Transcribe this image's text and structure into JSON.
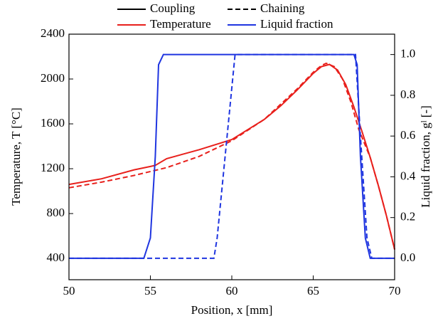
{
  "chart_data": {
    "type": "line",
    "xlabel": "Position, x [mm]",
    "ylabel": "Temperature, T [°C]",
    "y2label": "Liquid fraction, gˡ [-]",
    "xlim": [
      50,
      70
    ],
    "xticks": [
      50,
      55,
      60,
      65,
      70
    ],
    "ylim": [
      210,
      2400
    ],
    "yticks": [
      400,
      800,
      1200,
      1600,
      2000,
      2400
    ],
    "y2lim": [
      -0.105,
      1.1
    ],
    "y2ticks": [
      {
        "value": 0,
        "label": "0.0"
      },
      0.2,
      0.4,
      0.6,
      0.8,
      {
        "value": 1,
        "label": "1.0"
      }
    ],
    "legend": [
      {
        "label": "Coupling",
        "color": "#000000",
        "dashed": false
      },
      {
        "label": "Chaining",
        "color": "#000000",
        "dashed": true
      },
      {
        "label": "Temperature",
        "color": "#e8201c",
        "dashed": false
      },
      {
        "label": "Liquid fraction",
        "color": "#1f35e0",
        "dashed": false
      }
    ],
    "series": [
      {
        "color": "#e8201c",
        "dashed": false,
        "axis": "y",
        "x": [
          50,
          52,
          54,
          55,
          55.3,
          56,
          58,
          60,
          62,
          63,
          64,
          65,
          65.5,
          66,
          66.5,
          67,
          67.5,
          68,
          68.5,
          69,
          69.5,
          70
        ],
        "values": [
          1060,
          1110,
          1190,
          1220,
          1230,
          1290,
          1370,
          1460,
          1640,
          1760,
          1900,
          2050,
          2110,
          2130,
          2080,
          1950,
          1750,
          1530,
          1300,
          1050,
          780,
          480
        ]
      },
      {
        "color": "#e8201c",
        "dashed": true,
        "axis": "y",
        "x": [
          50,
          52,
          54,
          56,
          58,
          60,
          62,
          64,
          65,
          65.5,
          65.8,
          66.3,
          66.8,
          67.3,
          67.8,
          68.5,
          69,
          69.5,
          70
        ],
        "values": [
          1030,
          1080,
          1140,
          1210,
          1310,
          1450,
          1640,
          1910,
          2060,
          2120,
          2140,
          2110,
          2000,
          1800,
          1550,
          1300,
          1050,
          780,
          480
        ]
      },
      {
        "color": "#1f35e0",
        "dashed": false,
        "axis": "y2",
        "x": [
          50,
          54.6,
          55.0,
          55.3,
          55.5,
          55.8,
          67.5,
          67.7,
          67.9,
          68.2,
          68.5,
          70
        ],
        "values": [
          0,
          0,
          0.1,
          0.5,
          0.95,
          1,
          1,
          0.95,
          0.5,
          0.1,
          0,
          0
        ]
      },
      {
        "color": "#1f35e0",
        "dashed": true,
        "axis": "y2",
        "x": [
          50,
          58.9,
          59.1,
          60.2,
          67.6,
          67.9,
          68.3,
          68.6,
          70
        ],
        "values": [
          0,
          0,
          0.1,
          1,
          1,
          0.6,
          0.1,
          0,
          0
        ]
      }
    ]
  }
}
